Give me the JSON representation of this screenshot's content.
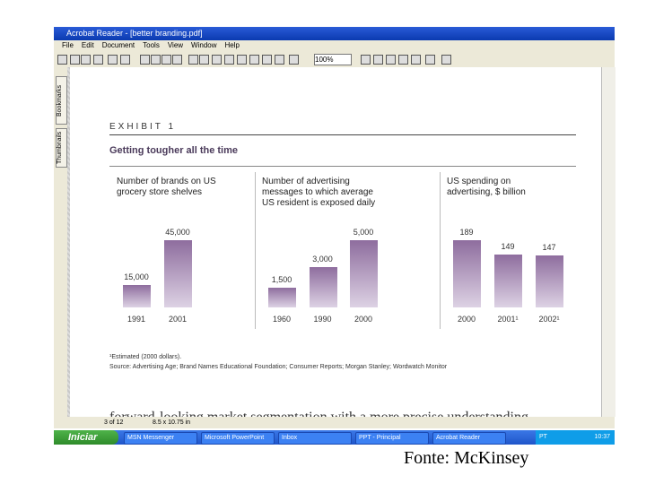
{
  "window": {
    "title": "Acrobat Reader - [better branding.pdf]",
    "menu": [
      "File",
      "Edit",
      "Document",
      "Tools",
      "View",
      "Window",
      "Help"
    ],
    "zoom": "100%",
    "side_tabs": [
      "Bookmarks",
      "Thumbnails"
    ],
    "status": {
      "page": "3 of 12",
      "size": "8.5 x 10.75 in"
    }
  },
  "document": {
    "exhibit": "EXHIBIT 1",
    "headline": "Getting tougher all the time",
    "footnote": "¹Estimated (2000 dollars).",
    "source": "Source: Advertising Age; Brand Names Educational Foundation; Consumer Reports; Morgan Stanley; Wordwatch Monitor",
    "body_text": "forward-looking market segmentation with a more precise understanding"
  },
  "chart_data": [
    {
      "type": "bar",
      "title": "Number of brands on US grocery store shelves",
      "categories": [
        "1991",
        "2001"
      ],
      "values": [
        15000,
        45000
      ],
      "value_labels": [
        "15,000",
        "45,000"
      ],
      "color": "#8e6d9e"
    },
    {
      "type": "bar",
      "title": "Number of advertising messages to which average US resident is exposed daily",
      "categories": [
        "1960",
        "1990",
        "2000"
      ],
      "values": [
        1500,
        3000,
        5000
      ],
      "value_labels": [
        "1,500",
        "3,000",
        "5,000"
      ],
      "color": "#8e6d9e"
    },
    {
      "type": "bar",
      "title": "US spending on advertising, $ billion",
      "categories": [
        "2000",
        "2001¹",
        "2002¹"
      ],
      "values": [
        189,
        149,
        147
      ],
      "color": "#8e6d9e"
    }
  ],
  "taskbar": {
    "start": "Iniciar",
    "items": [
      "MSN Messenger",
      "Microsoft PowerPoint",
      "Inbox",
      "PPT - Principal",
      "Acrobat Reader"
    ],
    "language": "PT",
    "clock": "10:37"
  },
  "caption": "Fonte: McKinsey"
}
